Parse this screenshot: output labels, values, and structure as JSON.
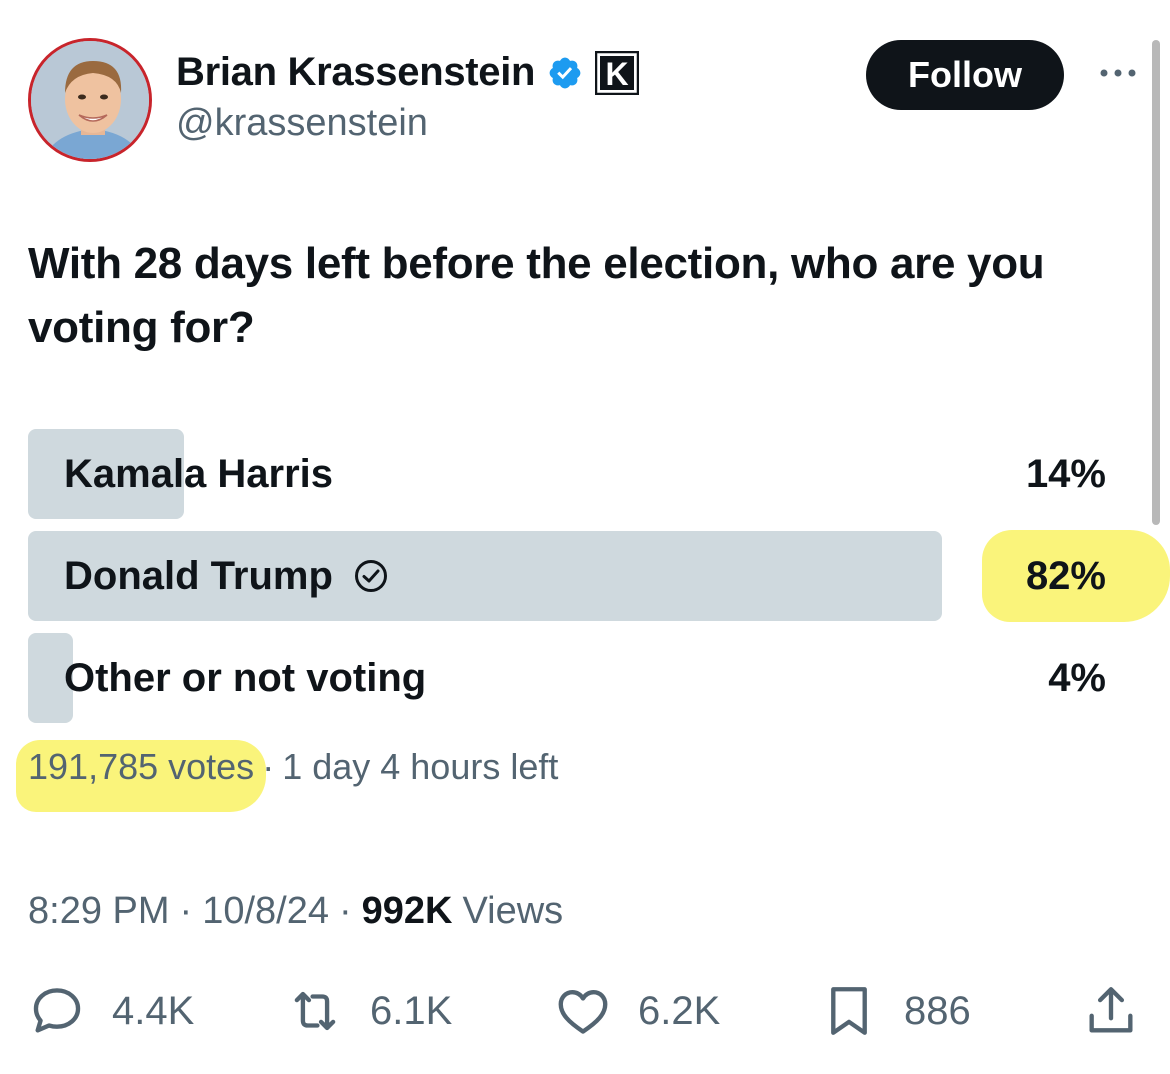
{
  "author": {
    "name": "Brian Krassenstein",
    "handle": "@krassenstein",
    "badge_letter": "K"
  },
  "follow_label": "Follow",
  "tweet_text": "With 28 days left before the election, who are you voting for?",
  "poll": {
    "options": [
      {
        "label": "Kamala Harris",
        "percent_label": "14%",
        "share": 0.14,
        "selected": false
      },
      {
        "label": "Donald Trump",
        "percent_label": "82%",
        "share": 0.82,
        "selected": true
      },
      {
        "label": "Other or not voting",
        "percent_label": "4%",
        "share": 0.04,
        "selected": false
      }
    ],
    "votes": "191,785 votes",
    "separator": "·",
    "time_left": "1 day 4 hours left"
  },
  "meta": {
    "time": "8:29 PM",
    "date": "10/8/24",
    "views_count": "992K",
    "views_label": "Views",
    "separator": "·"
  },
  "actions": {
    "replies": "4.4K",
    "reposts": "6.1K",
    "likes": "6.2K",
    "bookmarks": "886"
  },
  "colors": {
    "text": "#0f1419",
    "secondary": "#536471",
    "poll_fill": "#cfd9de",
    "highlight": "#f9f36d",
    "verified": "#1d9bf0"
  }
}
